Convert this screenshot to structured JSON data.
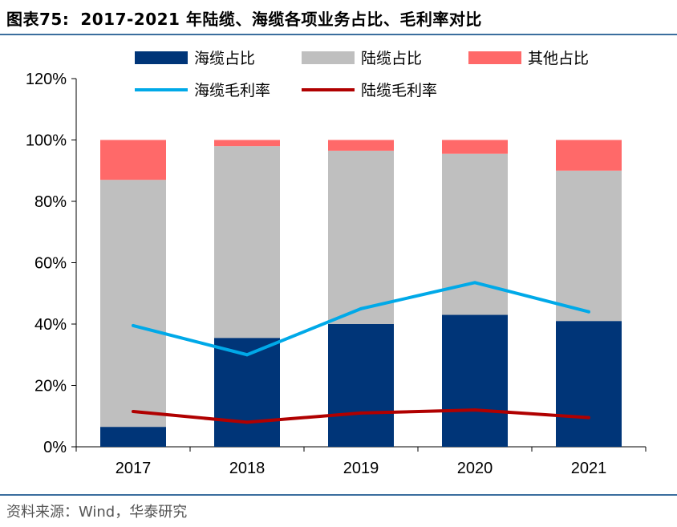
{
  "header": {
    "figure_no": "图表75:",
    "title": "2017-2021 年陆缆、海缆各项业务占比、毛利率对比"
  },
  "source": "资料来源：Wind，华泰研究",
  "chart_data": {
    "type": "bar",
    "stacked": true,
    "categories": [
      "2017",
      "2018",
      "2019",
      "2020",
      "2021"
    ],
    "series": [
      {
        "name": "海缆占比",
        "kind": "bar",
        "color": "#003578",
        "values": [
          6.5,
          35.5,
          40.0,
          43.0,
          41.0
        ]
      },
      {
        "name": "陆缆占比",
        "kind": "bar",
        "color": "#bfbfbf",
        "values": [
          80.5,
          62.5,
          56.5,
          52.5,
          49.0
        ]
      },
      {
        "name": "其他占比",
        "kind": "bar",
        "color": "#ff6969",
        "values": [
          13.0,
          2.0,
          3.5,
          4.5,
          10.0
        ]
      },
      {
        "name": "海缆毛利率",
        "kind": "line",
        "color": "#00a9e8",
        "values": [
          39.5,
          30.0,
          45.0,
          53.5,
          44.0
        ]
      },
      {
        "name": "陆缆毛利率",
        "kind": "line",
        "color": "#b00000",
        "values": [
          11.5,
          8.0,
          11.0,
          12.0,
          9.5
        ]
      }
    ],
    "yticks": [
      "0%",
      "20%",
      "40%",
      "60%",
      "80%",
      "100%",
      "120%"
    ],
    "ylim": [
      0,
      120
    ],
    "legend_position": "top",
    "grid": false
  }
}
